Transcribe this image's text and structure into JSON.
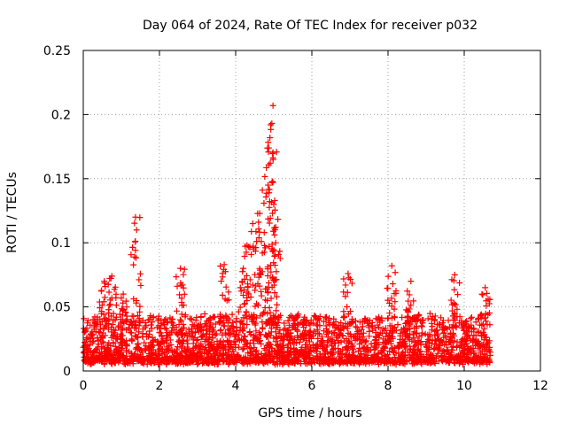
{
  "chart_data": {
    "type": "scatter",
    "title": "Day 064 of 2024, Rate Of TEC Index for receiver p032",
    "xlabel": "GPS time / hours",
    "ylabel": "ROTI / TECUs",
    "xlim": [
      0,
      12
    ],
    "ylim": [
      0,
      0.25
    ],
    "x_ticks": [
      0,
      2,
      4,
      6,
      8,
      10,
      12
    ],
    "x_tick_labels": [
      "0",
      "2",
      "4",
      "6",
      "8",
      "10",
      "12"
    ],
    "y_ticks": [
      0,
      0.05,
      0.1,
      0.15,
      0.2,
      0.25
    ],
    "y_tick_labels": [
      "0",
      "0.05",
      "0.1",
      "0.15",
      "0.2",
      "0.25"
    ],
    "grid": true,
    "marker": "+",
    "color": "#ff0000",
    "series": [
      {
        "name": "ROTI",
        "x_range": [
          0.0,
          10.7
        ],
        "baseline_band": [
          0.005,
          0.045
        ],
        "peaks": [
          {
            "x": 4.7,
            "y": 0.141
          },
          {
            "x": 4.85,
            "y": 0.145
          },
          {
            "x": 4.87,
            "y": 0.174
          },
          {
            "x": 4.9,
            "y": 0.182
          },
          {
            "x": 4.92,
            "y": 0.192
          },
          {
            "x": 4.95,
            "y": 0.193
          },
          {
            "x": 4.98,
            "y": 0.207
          },
          {
            "x": 5.0,
            "y": 0.13
          },
          {
            "x": 4.6,
            "y": 0.116
          },
          {
            "x": 4.55,
            "y": 0.101
          },
          {
            "x": 4.45,
            "y": 0.115
          },
          {
            "x": 4.75,
            "y": 0.108
          },
          {
            "x": 5.05,
            "y": 0.1
          },
          {
            "x": 4.3,
            "y": 0.098
          },
          {
            "x": 1.37,
            "y": 0.12
          },
          {
            "x": 1.4,
            "y": 0.11
          },
          {
            "x": 0.75,
            "y": 0.074
          },
          {
            "x": 2.55,
            "y": 0.08
          },
          {
            "x": 3.7,
            "y": 0.083
          },
          {
            "x": 6.95,
            "y": 0.076
          },
          {
            "x": 8.1,
            "y": 0.082
          },
          {
            "x": 8.6,
            "y": 0.07
          },
          {
            "x": 9.75,
            "y": 0.075
          },
          {
            "x": 10.55,
            "y": 0.065
          },
          {
            "x": 0.55,
            "y": 0.07
          },
          {
            "x": 1.05,
            "y": 0.06
          },
          {
            "x": 4.2,
            "y": 0.08
          }
        ]
      }
    ]
  }
}
